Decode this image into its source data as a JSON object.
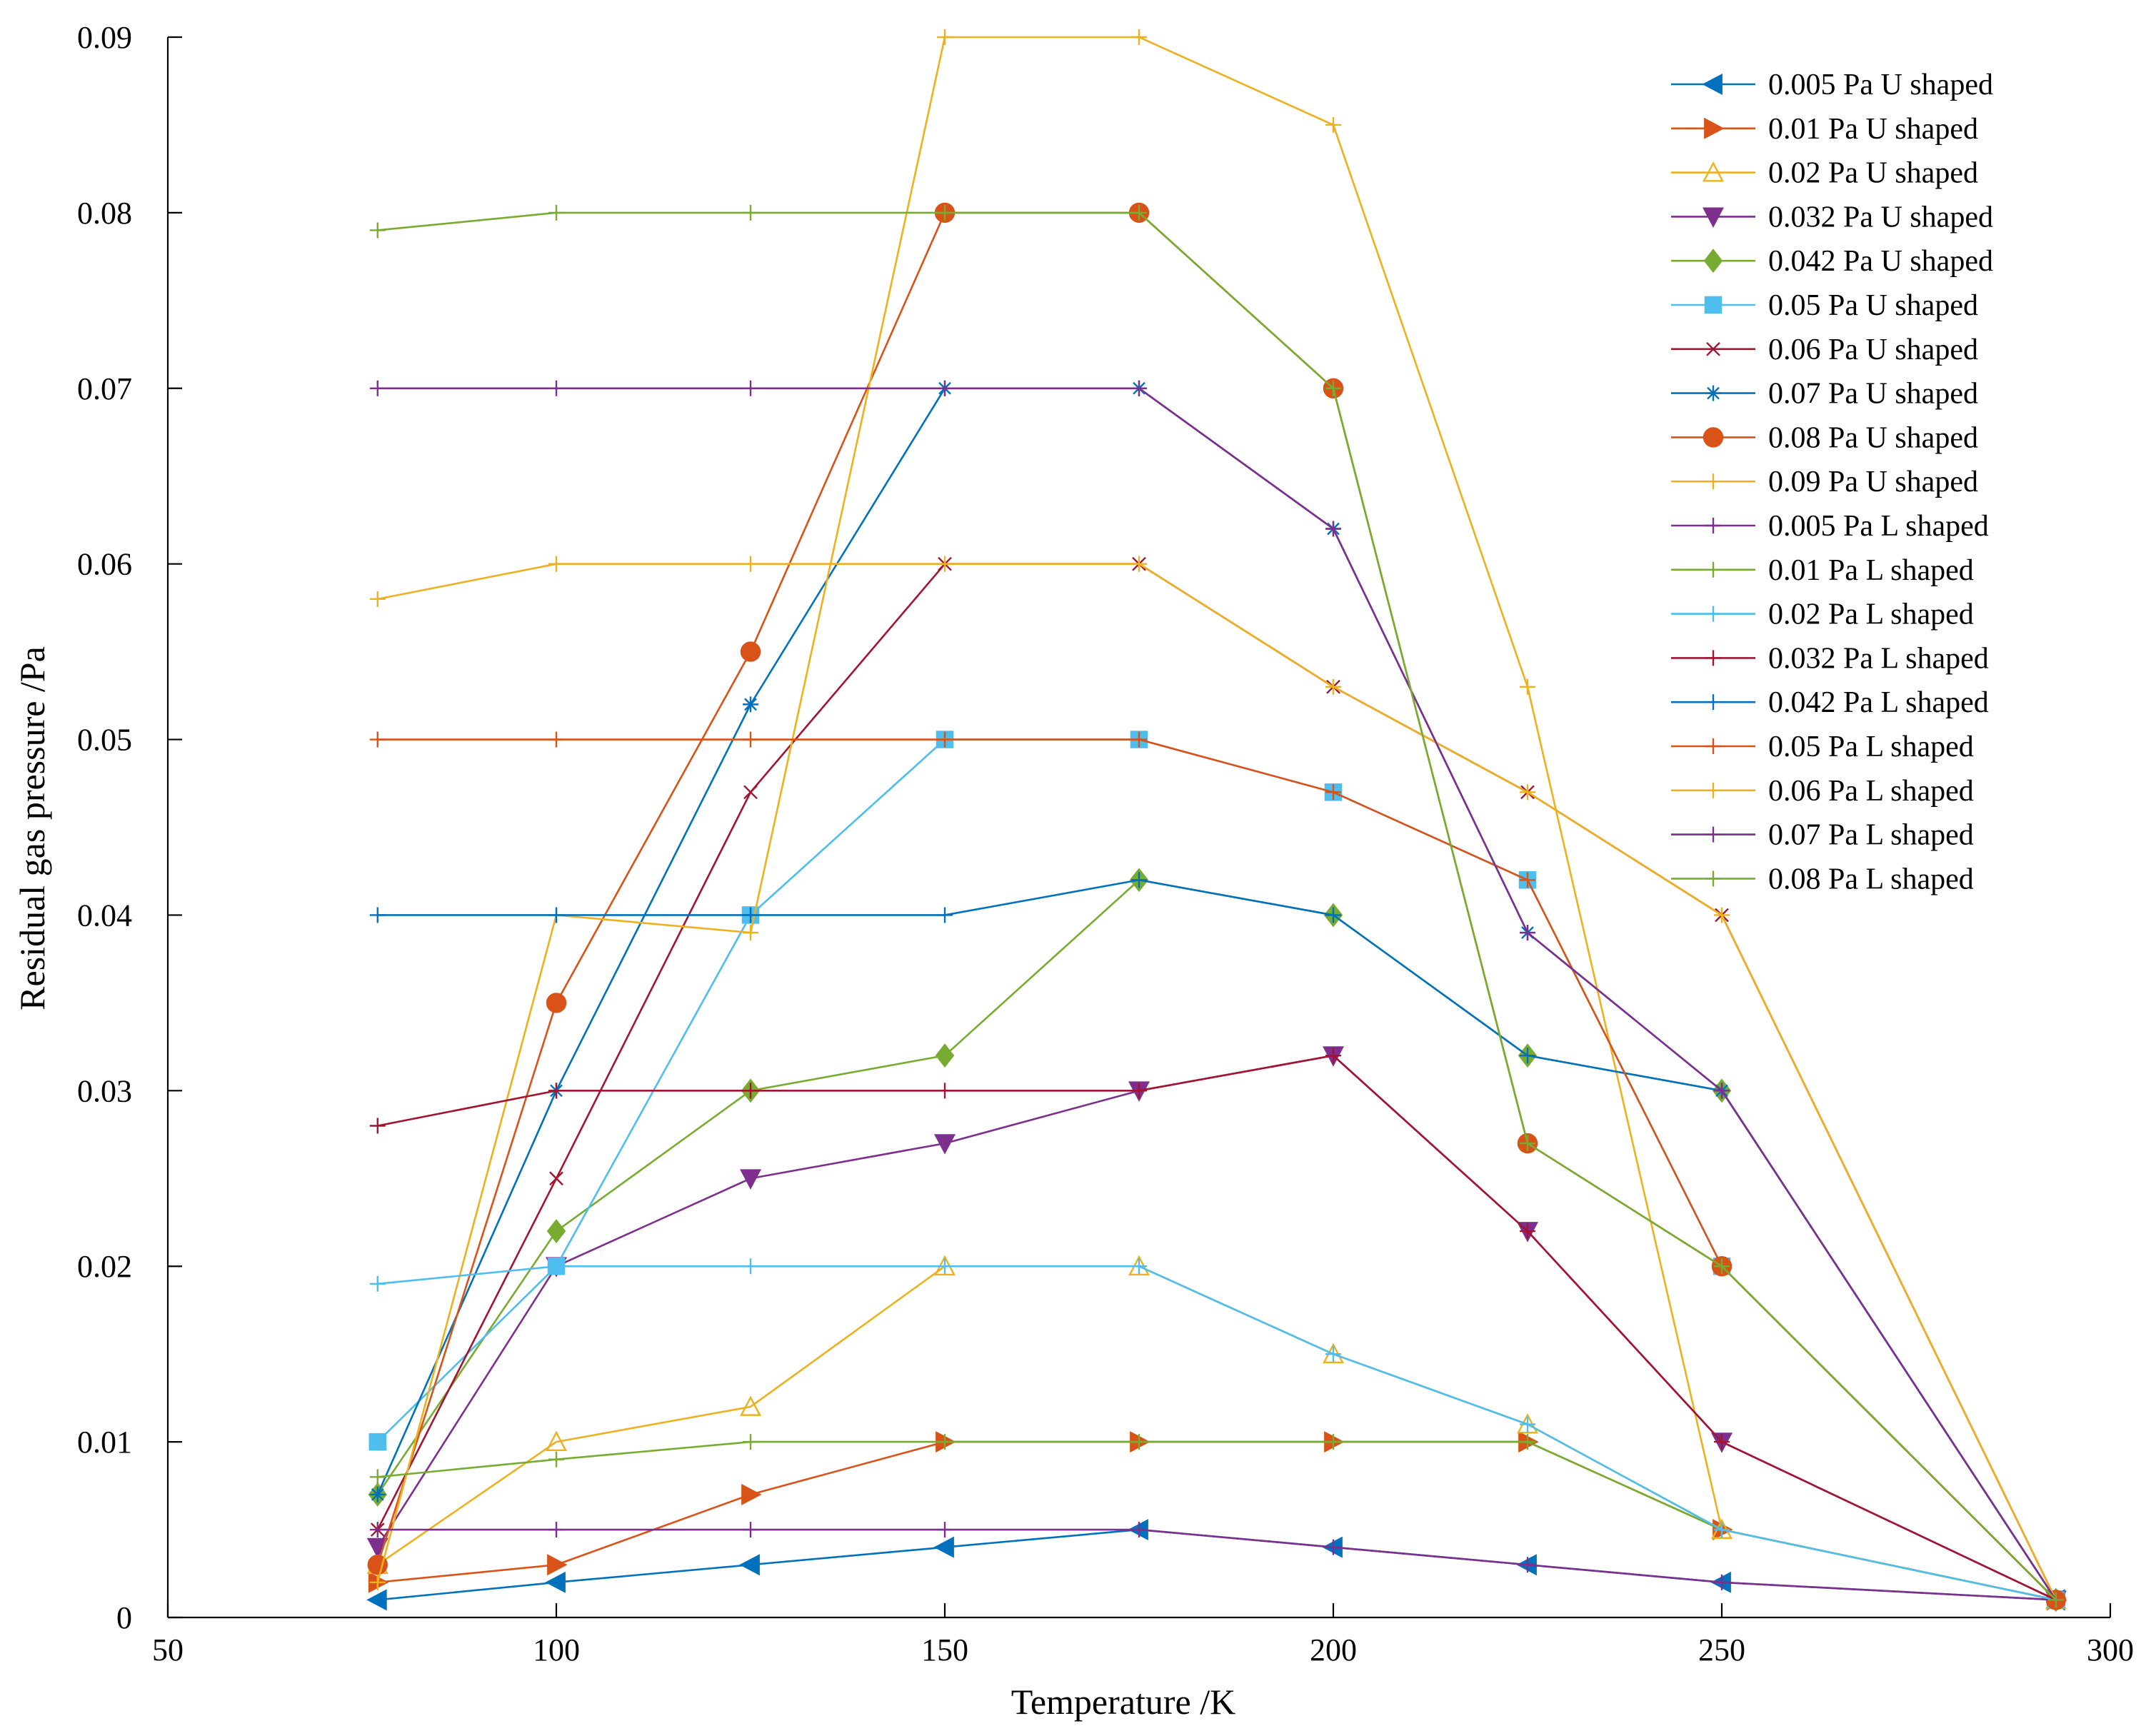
{
  "chart_data": {
    "type": "line",
    "title": "",
    "xlabel": "Temperature /K",
    "ylabel": "Residual gas pressure /Pa",
    "xlim": [
      50,
      300
    ],
    "ylim": [
      0,
      0.09
    ],
    "x_ticks": [
      "50",
      "100",
      "150",
      "200",
      "250",
      "300"
    ],
    "y_ticks": [
      "0",
      "0.01",
      "0.02",
      "0.03",
      "0.04",
      "0.05",
      "0.06",
      "0.07",
      "0.08",
      "0.09"
    ],
    "grid": false,
    "legend_position": "top-right",
    "x": [
      77,
      100,
      125,
      150,
      175,
      200,
      225,
      250,
      293
    ],
    "series": [
      {
        "name": "0.005 Pa U shaped",
        "color": "#0072BD",
        "marker": "triangle-left-filled",
        "values": [
          0.001,
          0.002,
          0.003,
          0.004,
          0.005,
          0.004,
          0.003,
          0.002,
          0.001
        ]
      },
      {
        "name": "0.01 Pa U shaped",
        "color": "#D95319",
        "marker": "triangle-right-filled",
        "values": [
          0.002,
          0.003,
          0.007,
          0.01,
          0.01,
          0.01,
          0.01,
          0.005,
          0.001
        ]
      },
      {
        "name": "0.02 Pa U shaped",
        "color": "#EDB120",
        "marker": "triangle-up-open",
        "values": [
          0.003,
          0.01,
          0.012,
          0.02,
          0.02,
          0.015,
          0.011,
          0.005,
          0.001
        ]
      },
      {
        "name": "0.032 Pa U shaped",
        "color": "#7E2F8E",
        "marker": "triangle-down-filled",
        "values": [
          0.004,
          0.02,
          0.025,
          0.027,
          0.03,
          0.032,
          0.022,
          0.01,
          0.001
        ]
      },
      {
        "name": "0.042 Pa U shaped",
        "color": "#77AC30",
        "marker": "diamond-filled",
        "values": [
          0.007,
          0.022,
          0.03,
          0.032,
          0.042,
          0.04,
          0.032,
          0.03,
          0.001
        ]
      },
      {
        "name": "0.05 Pa U shaped",
        "color": "#4DBEEE",
        "marker": "square-filled",
        "values": [
          0.01,
          0.02,
          0.04,
          0.05,
          0.05,
          0.047,
          0.042,
          0.02,
          0.001
        ]
      },
      {
        "name": "0.06 Pa U shaped",
        "color": "#A2142F",
        "marker": "x",
        "values": [
          0.005,
          0.025,
          0.047,
          0.06,
          0.06,
          0.053,
          0.047,
          0.04,
          0.001
        ]
      },
      {
        "name": "0.07 Pa U shaped",
        "color": "#0072BD",
        "marker": "asterisk",
        "values": [
          0.007,
          0.03,
          0.052,
          0.07,
          0.07,
          0.062,
          0.039,
          0.03,
          0.001
        ]
      },
      {
        "name": "0.08 Pa U shaped",
        "color": "#D95319",
        "marker": "circle-filled",
        "values": [
          0.003,
          0.035,
          0.055,
          0.08,
          0.08,
          0.07,
          0.027,
          0.02,
          0.001
        ]
      },
      {
        "name": "0.09 Pa U shaped",
        "color": "#EDB120",
        "marker": "plus",
        "values": [
          0.002,
          0.04,
          0.039,
          0.09,
          0.09,
          0.085,
          0.053,
          0.005,
          0.001
        ]
      },
      {
        "name": "0.005 Pa L shaped",
        "color": "#7E2F8E",
        "marker": "plus",
        "values": [
          0.005,
          0.005,
          0.005,
          0.005,
          0.005,
          0.004,
          0.003,
          0.002,
          0.001
        ]
      },
      {
        "name": "0.01 Pa L shaped",
        "color": "#77AC30",
        "marker": "plus",
        "values": [
          0.008,
          0.009,
          0.01,
          0.01,
          0.01,
          0.01,
          0.01,
          0.005,
          0.001
        ]
      },
      {
        "name": "0.02 Pa L shaped",
        "color": "#4DBEEE",
        "marker": "plus",
        "values": [
          0.019,
          0.02,
          0.02,
          0.02,
          0.02,
          0.015,
          0.011,
          0.005,
          0.001
        ]
      },
      {
        "name": "0.032 Pa L shaped",
        "color": "#A2142F",
        "marker": "plus",
        "values": [
          0.028,
          0.03,
          0.03,
          0.03,
          0.03,
          0.032,
          0.022,
          0.01,
          0.001
        ]
      },
      {
        "name": "0.042 Pa L shaped",
        "color": "#0072BD",
        "marker": "plus",
        "values": [
          0.04,
          0.04,
          0.04,
          0.04,
          0.042,
          0.04,
          0.032,
          0.03,
          0.001
        ]
      },
      {
        "name": "0.05 Pa L shaped",
        "color": "#D95319",
        "marker": "plus",
        "values": [
          0.05,
          0.05,
          0.05,
          0.05,
          0.05,
          0.047,
          0.042,
          0.02,
          0.001
        ]
      },
      {
        "name": "0.06 Pa L shaped",
        "color": "#EDB120",
        "marker": "plus",
        "values": [
          0.058,
          0.06,
          0.06,
          0.06,
          0.06,
          0.053,
          0.047,
          0.04,
          0.001
        ]
      },
      {
        "name": "0.07 Pa L shaped",
        "color": "#7E2F8E",
        "marker": "plus",
        "values": [
          0.07,
          0.07,
          0.07,
          0.07,
          0.07,
          0.062,
          0.039,
          0.03,
          0.001
        ]
      },
      {
        "name": "0.08 Pa L shaped",
        "color": "#77AC30",
        "marker": "plus",
        "values": [
          0.079,
          0.08,
          0.08,
          0.08,
          0.08,
          0.07,
          0.027,
          0.02,
          0.001
        ]
      }
    ]
  }
}
